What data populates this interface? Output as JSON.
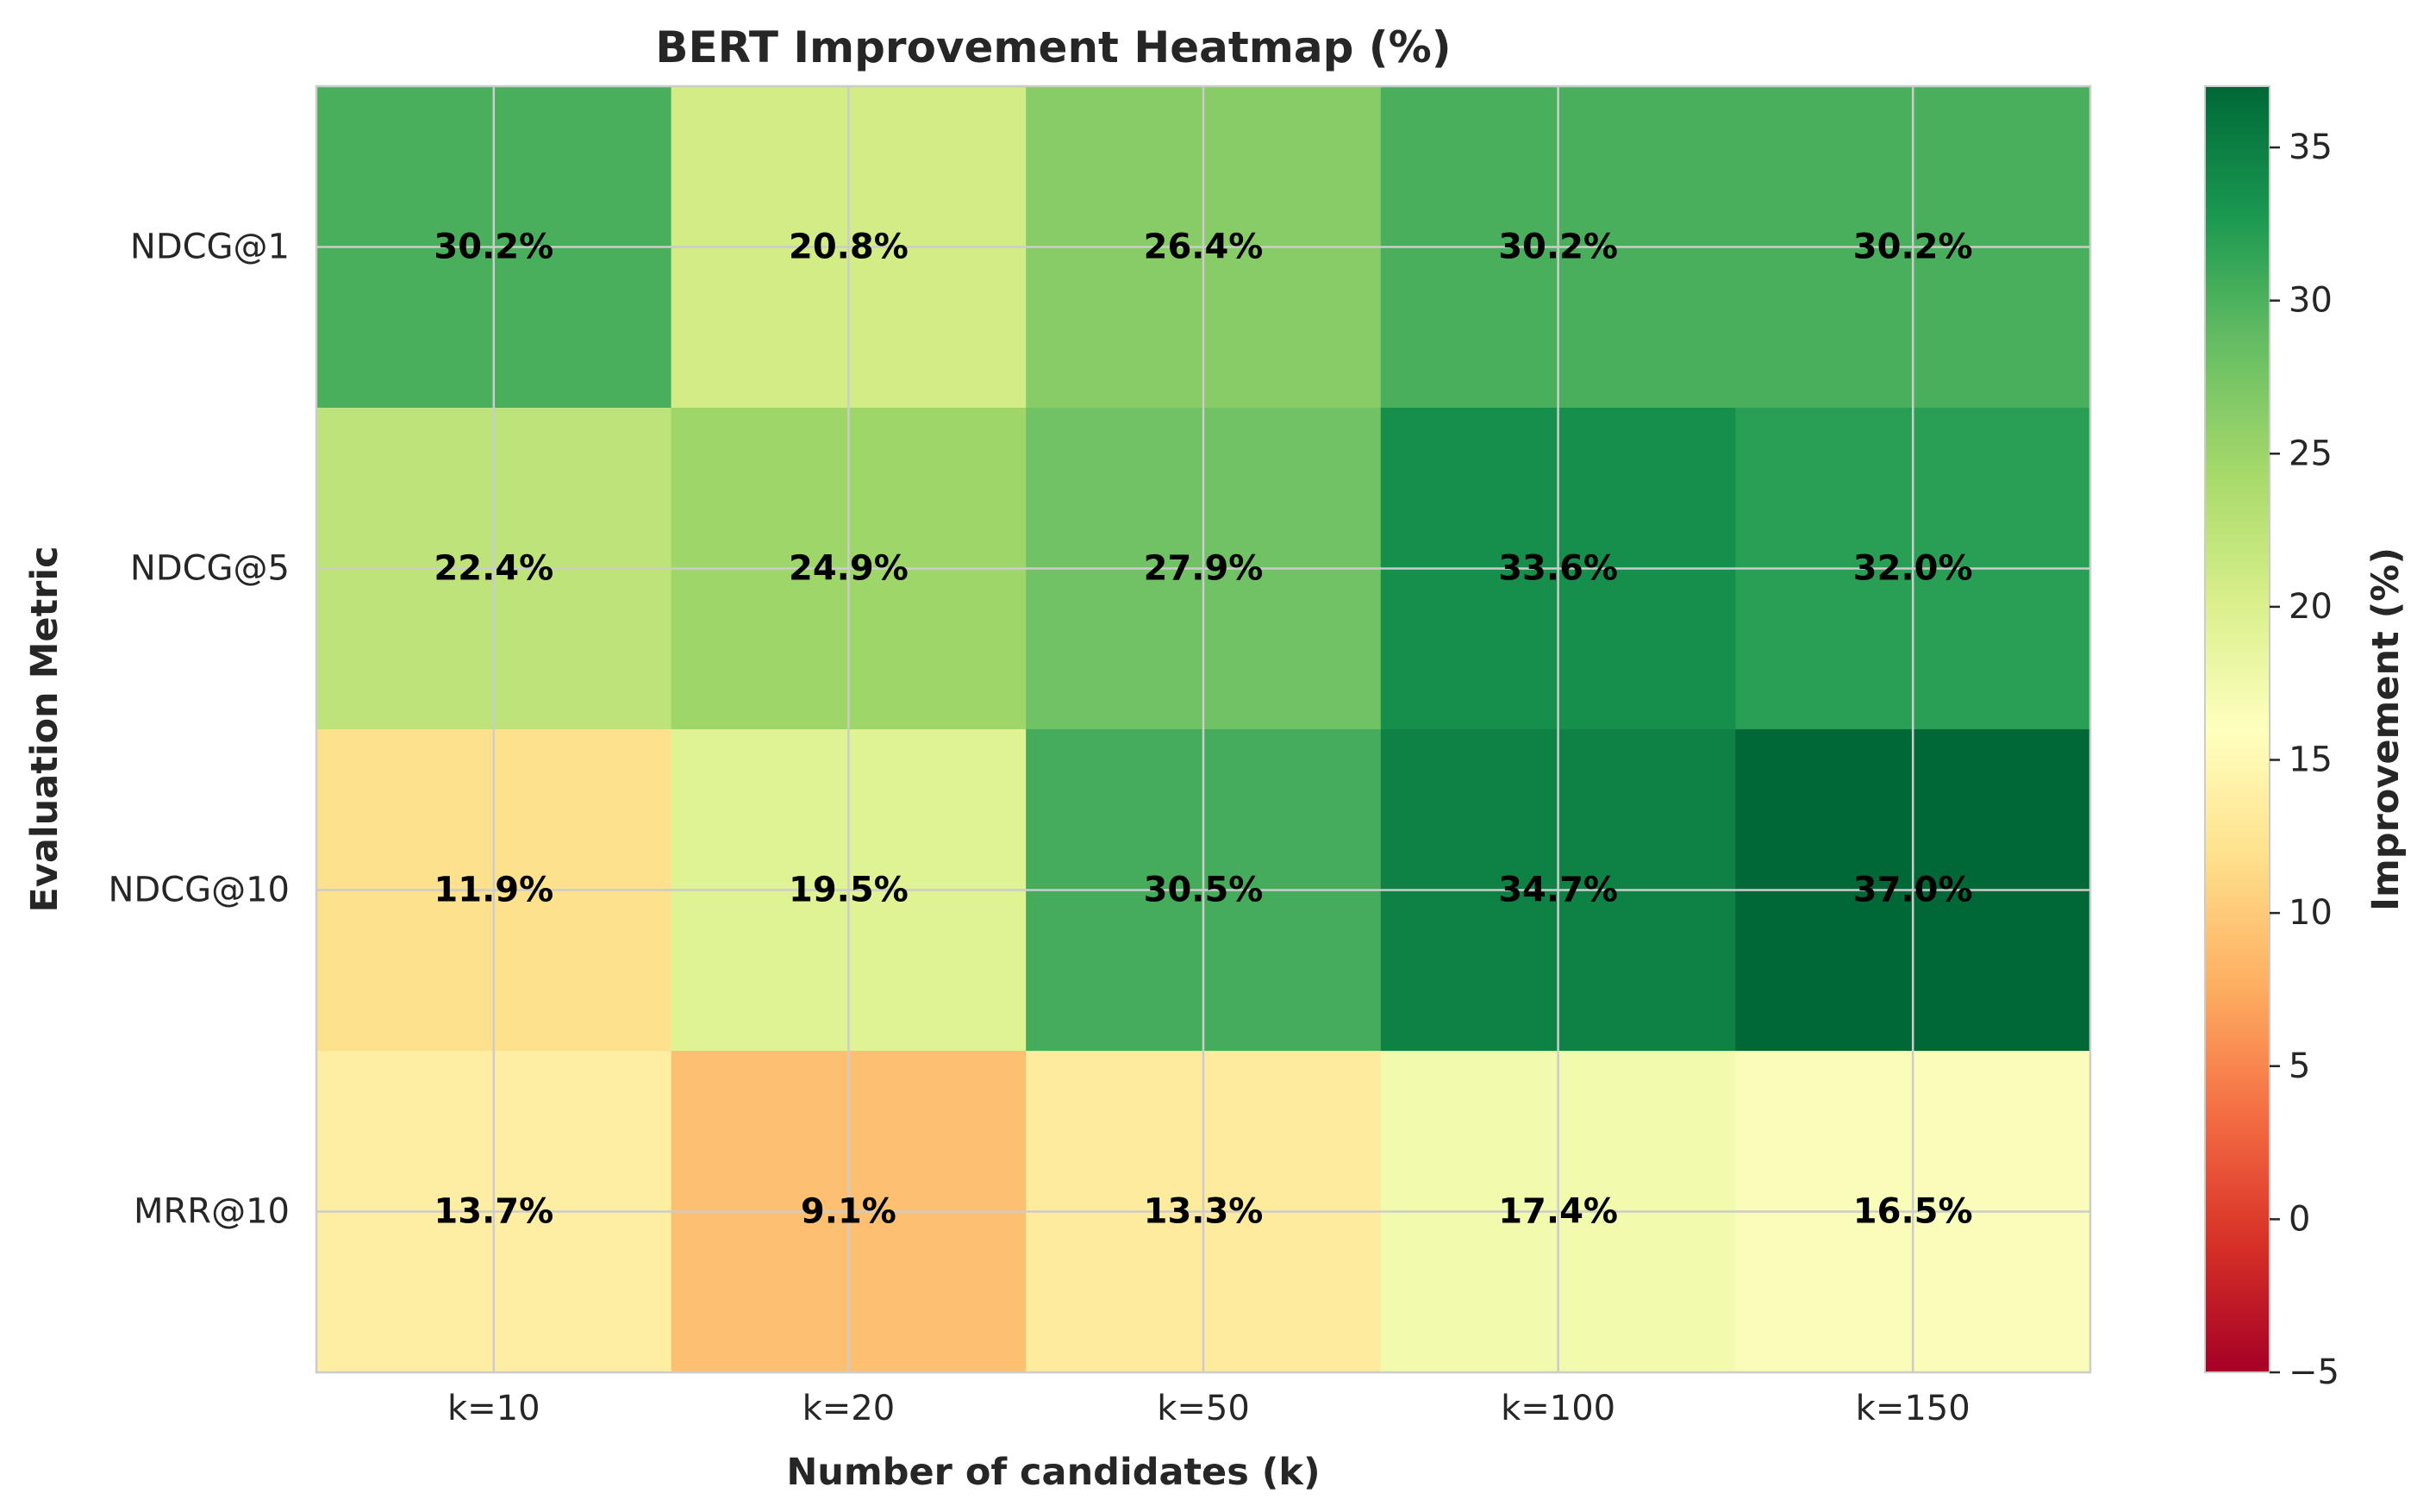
{
  "chart_data": {
    "type": "heatmap",
    "title": "BERT Improvement Heatmap (%)",
    "xlabel": "Number of candidates (k)",
    "ylabel": "Evaluation Metric",
    "x_categories": [
      "k=10",
      "k=20",
      "k=50",
      "k=100",
      "k=150"
    ],
    "y_categories": [
      "NDCG@1",
      "NDCG@5",
      "NDCG@10",
      "MRR@10"
    ],
    "values": [
      [
        30.2,
        20.8,
        26.4,
        30.2,
        30.2
      ],
      [
        22.4,
        24.9,
        27.9,
        33.6,
        32.0
      ],
      [
        11.9,
        19.5,
        30.5,
        34.7,
        37.0
      ],
      [
        13.7,
        9.1,
        13.3,
        17.4,
        16.5
      ]
    ],
    "cell_labels": [
      [
        "30.2%",
        "20.8%",
        "26.4%",
        "30.2%",
        "30.2%"
      ],
      [
        "22.4%",
        "24.9%",
        "27.9%",
        "33.6%",
        "32.0%"
      ],
      [
        "11.9%",
        "19.5%",
        "30.5%",
        "34.7%",
        "37.0%"
      ],
      [
        "13.7%",
        "9.1%",
        "13.3%",
        "17.4%",
        "16.5%"
      ]
    ],
    "colormap": "RdYlGn",
    "vmin": -5,
    "vmax": 37,
    "grid": true,
    "colorbar": {
      "label": "Improvement (%)",
      "ticks": [
        -5,
        0,
        5,
        10,
        15,
        20,
        25,
        30,
        35
      ],
      "tick_labels": [
        "−5",
        "0",
        "5",
        "10",
        "15",
        "20",
        "25",
        "30",
        "35"
      ]
    }
  }
}
